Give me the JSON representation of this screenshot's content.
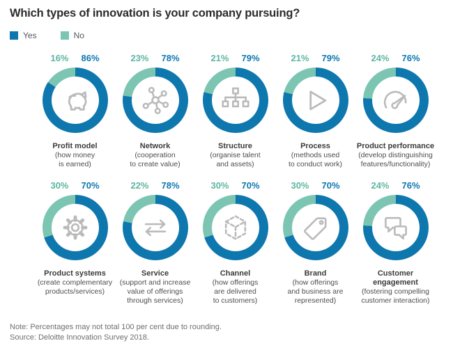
{
  "title": "Which types of innovation is your company pursuing?",
  "colors": {
    "yes": "#0d77ae",
    "no": "#7cc5b2",
    "pct_yes_text": "#0d77ae",
    "pct_no_text": "#5cb5a3",
    "icon_gray": "#bababa"
  },
  "legend": {
    "items": [
      {
        "label": "Yes",
        "color": "#0d77ae"
      },
      {
        "label": "No",
        "color": "#7cc5b2"
      }
    ]
  },
  "chart_data": {
    "type": "pie",
    "subtype": "donut-grid",
    "series_labels": [
      "No",
      "Yes"
    ],
    "items": [
      {
        "icon": "piggy-bank-icon",
        "no": 16,
        "yes": 86,
        "no_label": "16%",
        "yes_label": "86%",
        "name_lines": [
          "Profit model"
        ],
        "desc_lines": [
          "(how money",
          "is earned)"
        ]
      },
      {
        "icon": "network-icon",
        "no": 23,
        "yes": 78,
        "no_label": "23%",
        "yes_label": "78%",
        "name_lines": [
          "Network"
        ],
        "desc_lines": [
          "(cooperation",
          "to create value)"
        ]
      },
      {
        "icon": "org-chart-icon",
        "no": 21,
        "yes": 79,
        "no_label": "21%",
        "yes_label": "79%",
        "name_lines": [
          "Structure"
        ],
        "desc_lines": [
          "(organise talent",
          "and assets)"
        ]
      },
      {
        "icon": "play-icon",
        "no": 21,
        "yes": 79,
        "no_label": "21%",
        "yes_label": "79%",
        "name_lines": [
          "Process"
        ],
        "desc_lines": [
          "(methods used",
          "to conduct work)"
        ]
      },
      {
        "icon": "gauge-icon",
        "no": 24,
        "yes": 76,
        "no_label": "24%",
        "yes_label": "76%",
        "name_lines": [
          "Product performance"
        ],
        "desc_lines": [
          "(develop distinguishing",
          "features/functionality)"
        ]
      },
      {
        "icon": "gear-icon",
        "no": 30,
        "yes": 70,
        "no_label": "30%",
        "yes_label": "70%",
        "name_lines": [
          "Product systems"
        ],
        "desc_lines": [
          "(create complementary",
          "products/services)"
        ]
      },
      {
        "icon": "exchange-arrows-icon",
        "no": 22,
        "yes": 78,
        "no_label": "22%",
        "yes_label": "78%",
        "name_lines": [
          "Service"
        ],
        "desc_lines": [
          "(support and increase",
          "value of offerings",
          "through services)"
        ]
      },
      {
        "icon": "dashed-cube-icon",
        "no": 30,
        "yes": 70,
        "no_label": "30%",
        "yes_label": "70%",
        "name_lines": [
          "Channel"
        ],
        "desc_lines": [
          "(how offerings",
          "are delivered",
          "to customers)"
        ]
      },
      {
        "icon": "price-tag-icon",
        "no": 30,
        "yes": 70,
        "no_label": "30%",
        "yes_label": "70%",
        "name_lines": [
          "Brand"
        ],
        "desc_lines": [
          "(how offerings",
          "and business are",
          "represented)"
        ]
      },
      {
        "icon": "chat-bubbles-icon",
        "no": 24,
        "yes": 76,
        "no_label": "24%",
        "yes_label": "76%",
        "name_lines": [
          "Customer",
          "engagement"
        ],
        "desc_lines": [
          "(fostering compelling",
          "customer interaction)"
        ]
      }
    ]
  },
  "footer": {
    "note": "Note: Percentages may not total 100 per cent due to rounding.",
    "source": "Source: Deloitte Innovation Survey 2018."
  }
}
